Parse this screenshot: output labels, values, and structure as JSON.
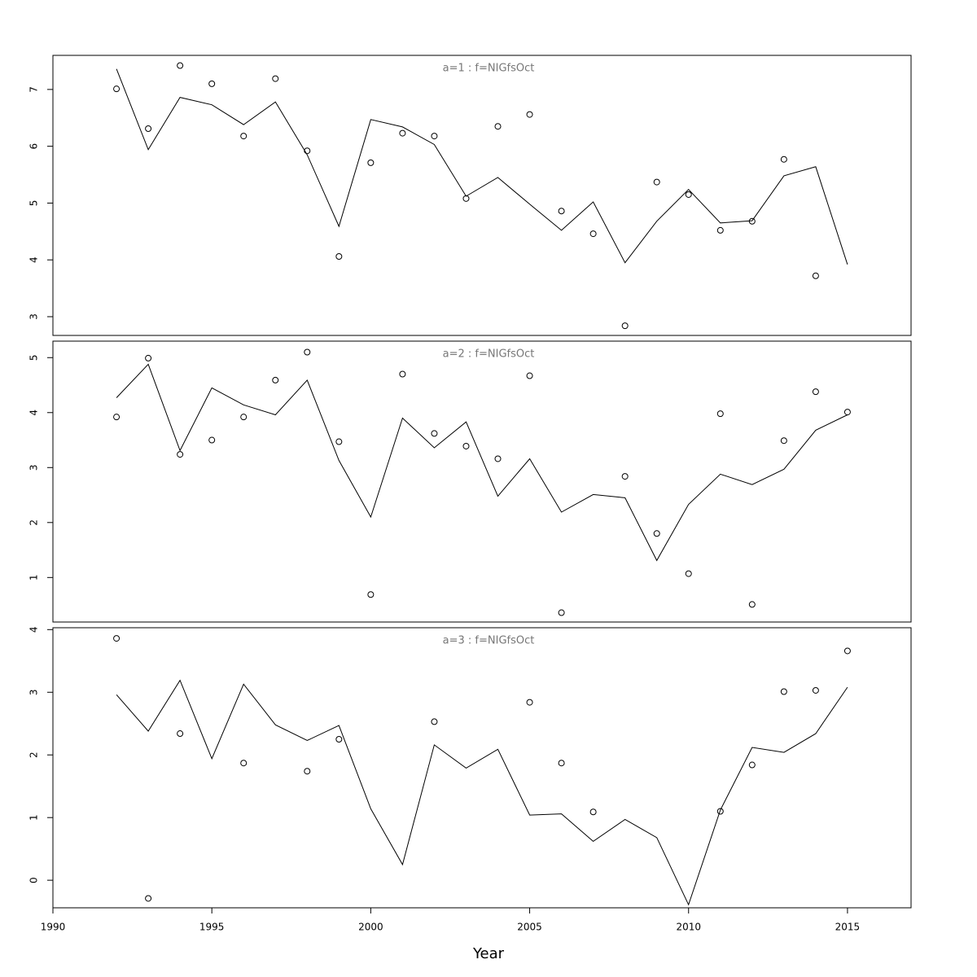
{
  "chart_data": [
    {
      "type": "line",
      "title": "a=1  :  f=NIGfsOct",
      "x": [
        1992,
        1993,
        1994,
        1995,
        1996,
        1997,
        1998,
        1999,
        2000,
        2001,
        2002,
        2003,
        2004,
        2005,
        2006,
        2007,
        2008,
        2009,
        2010,
        2011,
        2012,
        2013,
        2014,
        2015
      ],
      "xlim": [
        1990,
        2017
      ],
      "ylim": [
        2.67,
        7.6
      ],
      "yticks": [
        3,
        4,
        5,
        6,
        7
      ],
      "series": [
        {
          "style": "points",
          "color": "#000000",
          "values": [
            7.01,
            6.31,
            7.42,
            7.1,
            6.18,
            7.19,
            5.92,
            4.06,
            5.71,
            6.23,
            6.18,
            5.08,
            6.35,
            6.56,
            4.86,
            4.46,
            2.84,
            5.37,
            5.15,
            4.52,
            4.68,
            5.77,
            3.72,
            null
          ]
        },
        {
          "style": "line",
          "color": "#000000",
          "values": [
            7.36,
            5.94,
            6.86,
            6.73,
            6.38,
            6.78,
            5.85,
            4.59,
            6.47,
            6.34,
            6.03,
            5.12,
            5.45,
            4.98,
            4.52,
            5.02,
            3.95,
            4.68,
            5.24,
            4.65,
            4.69,
            5.48,
            5.64,
            3.92
          ]
        }
      ]
    },
    {
      "type": "line",
      "title": "a=2  :  f=NIGfsOct",
      "x": [
        1992,
        1993,
        1994,
        1995,
        1996,
        1997,
        1998,
        1999,
        2000,
        2001,
        2002,
        2003,
        2004,
        2005,
        2006,
        2007,
        2008,
        2009,
        2010,
        2011,
        2012,
        2013,
        2014,
        2015
      ],
      "xlim": [
        1990,
        2017
      ],
      "ylim": [
        0.19,
        5.3
      ],
      "yticks": [
        1,
        2,
        3,
        4,
        5
      ],
      "series": [
        {
          "style": "points",
          "color": "#000000",
          "values": [
            3.92,
            4.99,
            3.24,
            3.5,
            3.92,
            4.59,
            5.1,
            3.47,
            0.69,
            4.7,
            3.62,
            3.39,
            3.16,
            4.67,
            0.36,
            null,
            2.84,
            1.8,
            1.07,
            3.98,
            0.51,
            3.49,
            4.38,
            4.01
          ]
        },
        {
          "style": "line",
          "color": "#000000",
          "values": [
            4.27,
            4.88,
            3.31,
            4.45,
            4.14,
            3.96,
            4.59,
            3.13,
            2.1,
            3.9,
            3.36,
            3.83,
            2.48,
            3.16,
            2.19,
            2.51,
            2.45,
            1.31,
            2.33,
            2.88,
            2.69,
            2.97,
            3.68,
            3.96
          ]
        }
      ]
    },
    {
      "type": "line",
      "title": "a=3  :  f=NIGfsOct",
      "x": [
        1992,
        1993,
        1994,
        1995,
        1996,
        1997,
        1998,
        1999,
        2000,
        2001,
        2002,
        2003,
        2004,
        2005,
        2006,
        2007,
        2008,
        2009,
        2010,
        2011,
        2012,
        2013,
        2014,
        2015
      ],
      "xlim": [
        1990,
        2017
      ],
      "ylim": [
        -0.44,
        4.03
      ],
      "yticks": [
        0,
        1,
        2,
        3,
        4
      ],
      "xticks": [
        1990,
        1995,
        2000,
        2005,
        2010,
        2015
      ],
      "x_label": "Year",
      "series": [
        {
          "style": "points",
          "color": "#000000",
          "values": [
            3.86,
            -0.29,
            2.34,
            null,
            1.87,
            null,
            1.74,
            2.25,
            null,
            null,
            2.53,
            null,
            null,
            2.84,
            1.87,
            1.09,
            null,
            null,
            null,
            1.1,
            1.84,
            3.01,
            3.03,
            3.66
          ]
        },
        {
          "style": "line",
          "color": "#000000",
          "values": [
            2.96,
            2.38,
            3.19,
            1.94,
            3.13,
            2.48,
            2.23,
            2.47,
            1.14,
            0.25,
            2.16,
            1.79,
            2.09,
            1.04,
            1.06,
            0.62,
            0.97,
            0.68,
            -0.39,
            1.12,
            2.12,
            2.04,
            2.34,
            3.08
          ]
        }
      ]
    }
  ]
}
